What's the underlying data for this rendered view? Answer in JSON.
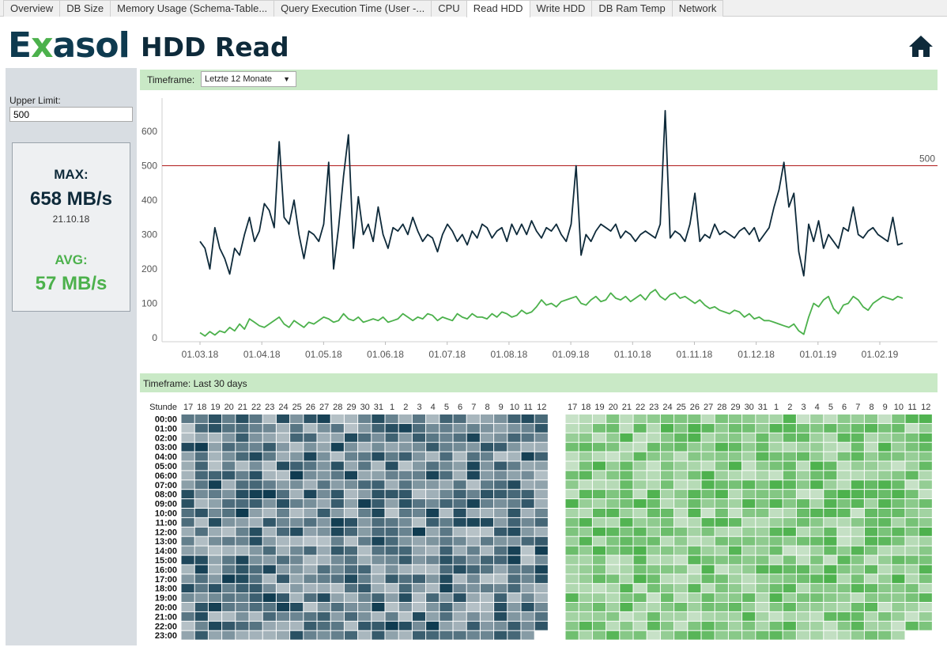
{
  "tabs": [
    {
      "label": "Overview"
    },
    {
      "label": "DB Size"
    },
    {
      "label": "Memory Usage (Schema-Table..."
    },
    {
      "label": "Query Execution Time (User -..."
    },
    {
      "label": "CPU"
    },
    {
      "label": "Read HDD",
      "active": true
    },
    {
      "label": "Write HDD"
    },
    {
      "label": "DB Ram Temp"
    },
    {
      "label": "Network"
    }
  ],
  "header": {
    "logo": "Exasol",
    "title": "HDD Read",
    "home_icon": "home-icon"
  },
  "sidebar": {
    "upper_limit_label": "Upper Limit:",
    "upper_limit_value": "500",
    "max_label": "MAX:",
    "max_value": "658 MB/s",
    "max_date": "21.10.18",
    "avg_label": "AVG:",
    "avg_value": "57 MB/s"
  },
  "timeframe_top": {
    "label": "Timeframe:",
    "selected": "Letzte 12 Monate"
  },
  "timeframe_bottom": {
    "label": "Timeframe: Last 30 days"
  },
  "colors": {
    "max_line": "#0e2a3a",
    "avg_line": "#4cb14c",
    "limit_line": "#b01a1a",
    "accent_green": "#4cb14c",
    "timeframe_bg": "#c9e9c6"
  },
  "chart_data": [
    {
      "type": "line",
      "x_tick_labels": [
        "01.03.18",
        "01.04.18",
        "01.05.18",
        "01.06.18",
        "01.07.18",
        "01.08.18",
        "01.09.18",
        "01.10.18",
        "01.11.18",
        "01.12.18",
        "01.01.19",
        "01.02.19"
      ],
      "y_tick_labels": [
        "0",
        "100",
        "200",
        "300",
        "400",
        "500",
        "600"
      ],
      "ylim": [
        0,
        650
      ],
      "reference_line": {
        "value": 500,
        "label": "500"
      },
      "series": [
        {
          "values": [
            280,
            260,
            200,
            320,
            260,
            230,
            185,
            260,
            240,
            300,
            350,
            280,
            310,
            390,
            370,
            320,
            570,
            350,
            330,
            400,
            300,
            230,
            310,
            300,
            280,
            330,
            510,
            200,
            320,
            470,
            590,
            260,
            410,
            300,
            330,
            280,
            380,
            300,
            260,
            320,
            310,
            330,
            300,
            350,
            310,
            280,
            300,
            290,
            250,
            300,
            330,
            310,
            280,
            300,
            270,
            310,
            290,
            330,
            320,
            290,
            310,
            320,
            280,
            330,
            300,
            330,
            300,
            340,
            310,
            290,
            320,
            310,
            330,
            300,
            280,
            330,
            500,
            240,
            300,
            280,
            310,
            330,
            320,
            310,
            330,
            290,
            310,
            300,
            280,
            300,
            310,
            300,
            290,
            330,
            660,
            290,
            310,
            300,
            280,
            330,
            420,
            280,
            300,
            290,
            330,
            300,
            310,
            300,
            290,
            310,
            320,
            300,
            320,
            280,
            300,
            320,
            380,
            430,
            510,
            380,
            420,
            250,
            180,
            330,
            280,
            340,
            260,
            300,
            280,
            260,
            320,
            310,
            380,
            300,
            290,
            310,
            320,
            300,
            290,
            280,
            350,
            270,
            275
          ]
        },
        {
          "values": [
            15,
            5,
            18,
            8,
            20,
            15,
            30,
            20,
            40,
            25,
            55,
            45,
            35,
            30,
            40,
            50,
            60,
            40,
            30,
            50,
            40,
            30,
            45,
            40,
            50,
            60,
            55,
            45,
            50,
            70,
            55,
            50,
            60,
            45,
            50,
            55,
            50,
            60,
            45,
            50,
            55,
            70,
            60,
            50,
            60,
            55,
            70,
            65,
            50,
            60,
            55,
            50,
            70,
            60,
            55,
            70,
            60,
            60,
            55,
            70,
            60,
            75,
            70,
            60,
            65,
            80,
            70,
            75,
            90,
            110,
            95,
            100,
            90,
            105,
            110,
            115,
            120,
            100,
            95,
            110,
            120,
            105,
            110,
            130,
            115,
            110,
            120,
            105,
            115,
            125,
            110,
            130,
            140,
            120,
            110,
            125,
            130,
            115,
            120,
            110,
            100,
            110,
            95,
            85,
            90,
            80,
            75,
            70,
            80,
            75,
            60,
            70,
            55,
            60,
            50,
            50,
            45,
            40,
            35,
            30,
            40,
            20,
            10,
            60,
            100,
            90,
            110,
            120,
            85,
            70,
            95,
            100,
            120,
            110,
            90,
            80,
            100,
            110,
            120,
            115,
            110,
            120,
            115
          ]
        }
      ]
    },
    {
      "type": "heatmap",
      "x_header": "Stunde",
      "x_tick_labels": [
        "17",
        "18",
        "19",
        "20",
        "21",
        "22",
        "23",
        "24",
        "25",
        "26",
        "27",
        "28",
        "29",
        "30",
        "31",
        "1",
        "2",
        "3",
        "4",
        "5",
        "6",
        "7",
        "8",
        "9",
        "10",
        "11",
        "12"
      ],
      "y_tick_labels": [
        "00:00",
        "01:00",
        "02:00",
        "03:00",
        "04:00",
        "05:00",
        "06:00",
        "07:00",
        "08:00",
        "09:00",
        "10:00",
        "11:00",
        "12:00",
        "13:00",
        "14:00",
        "15:00",
        "16:00",
        "17:00",
        "18:00",
        "19:00",
        "20:00",
        "21:00",
        "22:00",
        "23:00"
      ],
      "color": "#0e3a4f"
    },
    {
      "type": "heatmap",
      "x_tick_labels": [
        "17",
        "18",
        "19",
        "20",
        "21",
        "22",
        "23",
        "24",
        "25",
        "26",
        "27",
        "28",
        "29",
        "30",
        "31",
        "1",
        "2",
        "3",
        "4",
        "5",
        "6",
        "7",
        "8",
        "9",
        "10",
        "11",
        "12"
      ],
      "y_tick_labels": [
        "00:00",
        "01:00",
        "02:00",
        "03:00",
        "04:00",
        "05:00",
        "06:00",
        "07:00",
        "08:00",
        "09:00",
        "10:00",
        "11:00",
        "12:00",
        "13:00",
        "14:00",
        "15:00",
        "16:00",
        "17:00",
        "18:00",
        "19:00",
        "20:00",
        "21:00",
        "22:00",
        "23:00"
      ],
      "color": "#4cb14c"
    }
  ]
}
